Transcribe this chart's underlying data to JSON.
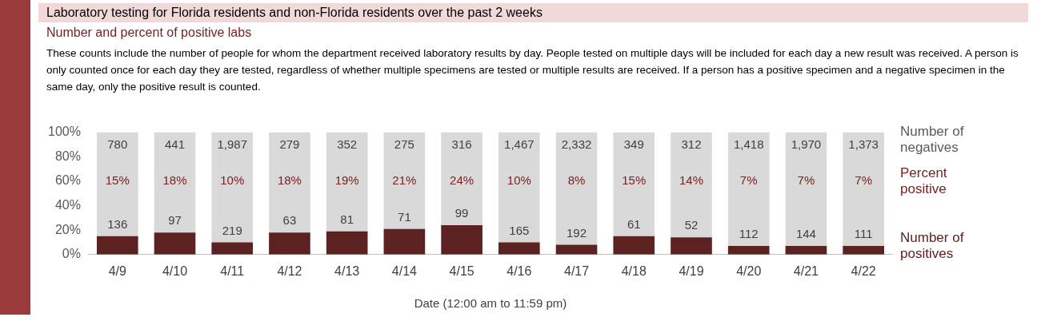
{
  "chart_data": {
    "type": "bar",
    "stacked": true,
    "title": "Laboratory testing for Florida residents and non-Florida residents over the past 2 weeks",
    "subtitle": "Number and percent of positive labs",
    "xlabel": "Date (12:00 am to 11:59 pm)",
    "categories": [
      "4/9",
      "4/10",
      "4/11",
      "4/12",
      "4/13",
      "4/14",
      "4/15",
      "4/16",
      "4/17",
      "4/18",
      "4/19",
      "4/20",
      "4/21",
      "4/22"
    ],
    "series": [
      {
        "name": "Number of positives",
        "color": "#5c2121",
        "values": [
          15,
          18,
          10,
          18,
          19,
          21,
          24,
          10,
          8,
          15,
          14,
          7,
          7,
          7
        ]
      },
      {
        "name": "Number of negatives",
        "color": "#d9d9d9",
        "values": [
          85,
          82,
          90,
          82,
          81,
          79,
          76,
          90,
          92,
          85,
          86,
          93,
          93,
          93
        ]
      }
    ],
    "ylim": [
      0,
      100
    ],
    "yticks": [
      {
        "value": 0,
        "label": "0%"
      },
      {
        "value": 20,
        "label": "20%"
      },
      {
        "value": 40,
        "label": "40%"
      },
      {
        "value": 60,
        "label": "60%"
      },
      {
        "value": 80,
        "label": "80%"
      },
      {
        "value": 100,
        "label": "100%"
      }
    ],
    "grid": false,
    "legend": "right",
    "annotations": [
      "These counts include the number of people for whom the department received laboratory results by day. People tested on multiple days will be included for each day a new result was received. A person is only counted once for each day they are tested, regardless of whether multiple specimens are tested or multiple results are received. If a person has a positive specimen and a negative specimen in the same day, only the positive result is counted.",
      "Percent positive",
      "15%",
      "18%",
      "10%",
      "18%",
      "19%",
      "21%",
      "24%",
      "10%",
      "8%",
      "15%",
      "14%",
      "7%",
      "7%",
      "7%",
      {
        "text": "136",
        "x": "4/9",
        "y": 15
      },
      {
        "text": "97",
        "x": "4/10",
        "y": 18
      },
      {
        "text": "219",
        "x": "4/11",
        "y": 10
      },
      {
        "text": "63",
        "x": "4/12",
        "y": 18
      },
      {
        "text": "81",
        "x": "4/13",
        "y": 19
      },
      {
        "text": "71",
        "x": "4/14",
        "y": 21
      },
      {
        "text": "99",
        "x": "4/15",
        "y": 24
      },
      {
        "text": "165",
        "x": "4/16",
        "y": 10
      },
      {
        "text": "192",
        "x": "4/17",
        "y": 8
      },
      {
        "text": "61",
        "x": "4/18",
        "y": 15
      },
      {
        "text": "52",
        "x": "4/19",
        "y": 14
      },
      {
        "text": "112",
        "x": "4/20",
        "y": 7
      },
      {
        "text": "144",
        "x": "4/21",
        "y": 7
      },
      {
        "text": "111",
        "x": "4/22",
        "y": 7
      },
      {
        "text": "780",
        "x": "4/9",
        "y": 100
      },
      {
        "text": "441",
        "x": "4/10",
        "y": 100
      },
      {
        "text": "1,987",
        "x": "4/11",
        "y": 100
      },
      {
        "text": "279",
        "x": "4/12",
        "y": 100
      },
      {
        "text": "352",
        "x": "4/13",
        "y": 100
      },
      {
        "text": "275",
        "x": "4/14",
        "y": 100
      },
      {
        "text": "316",
        "x": "4/15",
        "y": 100
      },
      {
        "text": "1,467",
        "x": "4/16",
        "y": 100
      },
      {
        "text": "2,332",
        "x": "4/17",
        "y": 100
      },
      {
        "text": "349",
        "x": "4/18",
        "y": 100
      },
      {
        "text": "312",
        "x": "4/19",
        "y": 100
      },
      {
        "text": "1,418",
        "x": "4/20",
        "y": 100
      },
      {
        "text": "1,970",
        "x": "4/21",
        "y": 100
      },
      {
        "text": "1,373",
        "x": "4/22",
        "y": 100
      }
    ]
  }
}
